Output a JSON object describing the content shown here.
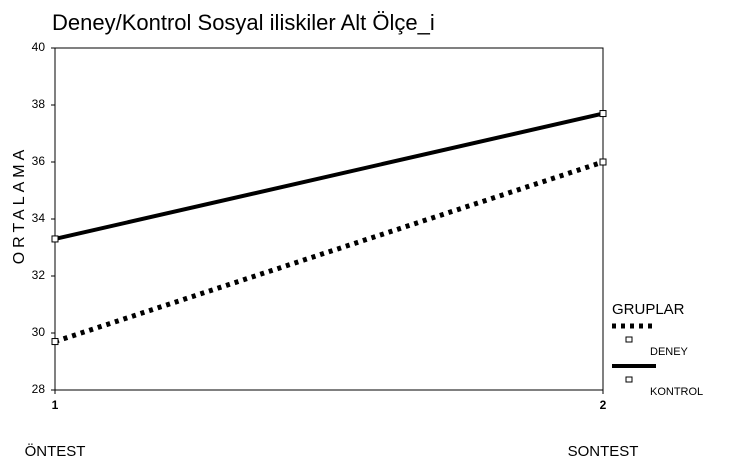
{
  "chart_data": {
    "type": "line",
    "title": "Deney/Kontrol Sosyal iliskiler Alt Ölçe_i",
    "y_label": "ORTALAMA",
    "x": [
      1,
      2
    ],
    "xlim": [
      1,
      2
    ],
    "xticks": [
      1,
      2
    ],
    "x_annotations": [
      "ÖNTEST",
      "SONTEST"
    ],
    "ylim": [
      28,
      40
    ],
    "yticks": [
      28,
      30,
      32,
      34,
      36,
      38,
      40
    ],
    "legend_title": "GRUPLAR",
    "legend_position": "right",
    "series": [
      {
        "name": "DENEY",
        "color": "#000000",
        "style": "dotted",
        "values": [
          29.7,
          36.0
        ]
      },
      {
        "name": "KONTROL",
        "color": "#000000",
        "style": "solid",
        "values": [
          33.3,
          37.7
        ]
      }
    ]
  }
}
